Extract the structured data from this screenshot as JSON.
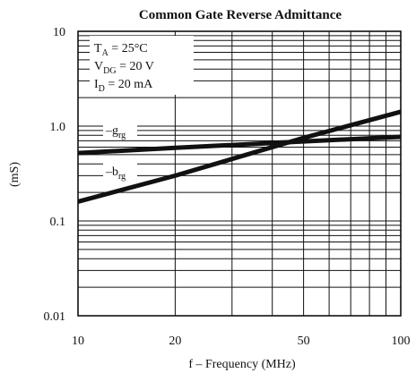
{
  "chart_data": {
    "type": "line",
    "title": "Common Gate Reverse Admittance",
    "xlabel": "f – Frequency (MHz)",
    "ylabel": "(mS)",
    "x_scale": "log",
    "y_scale": "log",
    "xlim": [
      10,
      100
    ],
    "ylim": [
      0.01,
      10
    ],
    "x_ticks": [
      10,
      20,
      50,
      100
    ],
    "x_tick_labels": [
      "10",
      "20",
      "50",
      "100"
    ],
    "y_ticks": [
      0.01,
      0.1,
      1.0,
      10
    ],
    "y_tick_labels": [
      "0.01",
      "0.1",
      "1.0",
      "10"
    ],
    "grid": true,
    "conditions": [
      {
        "main": "T",
        "sub": "A",
        "rest": " = 25°C"
      },
      {
        "main": "V",
        "sub": "DG",
        "rest": " = 20 V"
      },
      {
        "main": "I",
        "sub": "D",
        "rest": " = 20 mA"
      }
    ],
    "series": [
      {
        "name": "–g",
        "name_sub": "rg",
        "x": [
          10,
          20,
          50,
          100
        ],
        "y": [
          0.52,
          0.59,
          0.69,
          0.77
        ]
      },
      {
        "name": "–b",
        "name_sub": "rg",
        "x": [
          10,
          20,
          50,
          100
        ],
        "y": [
          0.16,
          0.3,
          0.75,
          1.42
        ]
      }
    ]
  }
}
